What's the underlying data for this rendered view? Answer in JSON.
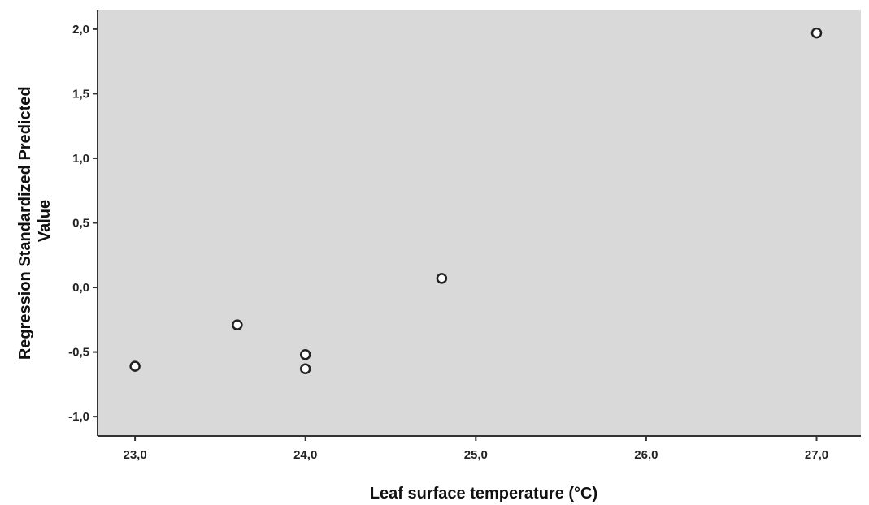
{
  "chart_data": {
    "type": "scatter",
    "xlabel": "Leaf surface temperature (°C)",
    "ylabel_lines": [
      "Regression Standardized Predicted",
      "Value"
    ],
    "xlim": [
      22.78,
      27.26
    ],
    "ylim": [
      -1.15,
      2.15
    ],
    "x_ticks": [
      23.0,
      24.0,
      25.0,
      26.0,
      27.0
    ],
    "x_tick_labels": [
      "23,0",
      "24,0",
      "25,0",
      "26,0",
      "27,0"
    ],
    "y_ticks": [
      -1.0,
      -0.5,
      0.0,
      0.5,
      1.0,
      1.5,
      2.0
    ],
    "y_tick_labels": [
      "-1,0",
      "-0,5",
      "0,0",
      "0,5",
      "1,0",
      "1,5",
      "2,0"
    ],
    "grid": false,
    "background_color": "#d9d9d9",
    "marker_color": "#222222",
    "points": [
      {
        "x": 23.0,
        "y": -0.61
      },
      {
        "x": 23.6,
        "y": -0.29
      },
      {
        "x": 24.0,
        "y": -0.52
      },
      {
        "x": 24.0,
        "y": -0.63
      },
      {
        "x": 24.8,
        "y": 0.07
      },
      {
        "x": 27.0,
        "y": 1.97
      }
    ]
  }
}
